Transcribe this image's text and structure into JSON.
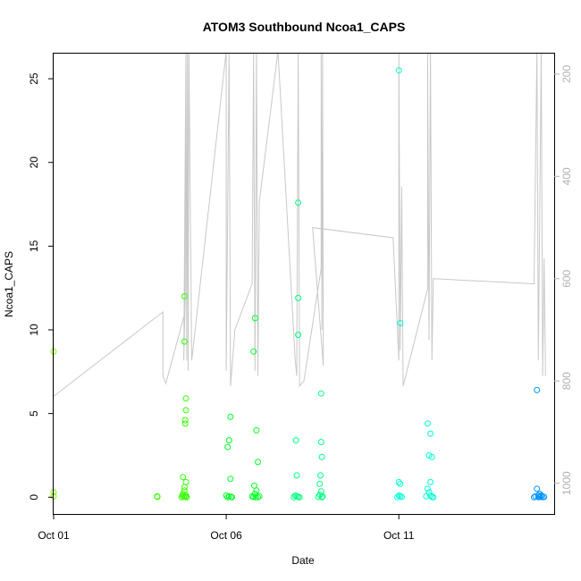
{
  "chart_data": {
    "type": "scatter",
    "title": "ATOM3 Southbound Ncoa1_CAPS",
    "xlabel": "Date",
    "ylabel": "Ncoa1_CAPS",
    "x_is_date": true,
    "xlim": [
      "2023-10-01T00:00",
      "2023-10-15T12:00"
    ],
    "ylim": [
      -1,
      26.5
    ],
    "y2lim": [
      1060,
      160
    ],
    "x_ticks": [
      {
        "value": "2023-10-01T00:00",
        "label": "Oct 01"
      },
      {
        "value": "2023-10-06T00:00",
        "label": "Oct 06"
      },
      {
        "value": "2023-10-11T00:00",
        "label": "Oct 11"
      }
    ],
    "y_ticks": [
      0,
      5,
      10,
      15,
      20,
      25
    ],
    "y2_ticks": [
      200,
      400,
      600,
      800,
      1000
    ],
    "grid": false,
    "legend": "none",
    "colors": {
      "depth_line": "#c8c8c8",
      "right_axis": "#b0b0b0"
    },
    "series": [
      {
        "color": "#7fff00",
        "points": [
          [
            "2023-10-01T00:00",
            8.7
          ],
          [
            "2023-10-01T00:00",
            0.3
          ],
          [
            "2023-10-01T00:00",
            0.05
          ]
        ]
      },
      {
        "color": "#33ff00",
        "points": [
          [
            "2023-10-04T00:00",
            0.05
          ],
          [
            "2023-10-04T00:10",
            0.02
          ],
          [
            "2023-10-04T19:00",
            12.0
          ],
          [
            "2023-10-04T19:00",
            9.3
          ],
          [
            "2023-10-04T20:00",
            5.9
          ],
          [
            "2023-10-04T20:00",
            5.2
          ],
          [
            "2023-10-04T19:30",
            4.6
          ],
          [
            "2023-10-04T19:30",
            4.4
          ],
          [
            "2023-10-04T18:00",
            1.2
          ],
          [
            "2023-10-04T20:00",
            0.9
          ],
          [
            "2023-10-04T19:00",
            0.6
          ],
          [
            "2023-10-04T19:00",
            0.4
          ],
          [
            "2023-10-04T18:00",
            0.2
          ],
          [
            "2023-10-04T20:00",
            0.1
          ],
          [
            "2023-10-04T17:30",
            0.1
          ],
          [
            "2023-10-04T18:30",
            0.05
          ],
          [
            "2023-10-04T19:30",
            0.02
          ],
          [
            "2023-10-04T17:00",
            0.0
          ],
          [
            "2023-10-04T20:30",
            0.0
          ]
        ]
      },
      {
        "color": "#00ff26",
        "points": [
          [
            "2023-10-06T03:00",
            4.8
          ],
          [
            "2023-10-06T02:00",
            3.4
          ],
          [
            "2023-10-06T01:00",
            3.0
          ],
          [
            "2023-10-06T03:00",
            1.1
          ],
          [
            "2023-10-06T00:00",
            0.1
          ],
          [
            "2023-10-06T02:00",
            0.05
          ],
          [
            "2023-10-06T03:30",
            0.02
          ],
          [
            "2023-10-06T01:00",
            0.0
          ],
          [
            "2023-10-06T04:00",
            0.0
          ],
          [
            "2023-10-06T20:00",
            10.7
          ],
          [
            "2023-10-06T19:00",
            8.7
          ],
          [
            "2023-10-06T21:00",
            4.0
          ],
          [
            "2023-10-06T22:00",
            2.1
          ],
          [
            "2023-10-06T19:30",
            0.7
          ],
          [
            "2023-10-06T21:00",
            0.4
          ],
          [
            "2023-10-06T20:00",
            0.2
          ],
          [
            "2023-10-06T18:00",
            0.05
          ],
          [
            "2023-10-06T19:00",
            0.02
          ],
          [
            "2023-10-06T20:30",
            0.0
          ],
          [
            "2023-10-06T22:00",
            0.0
          ],
          [
            "2023-10-06T23:00",
            0.05
          ]
        ]
      },
      {
        "color": "#00ff80",
        "points": [
          [
            "2023-10-08T02:00",
            17.6
          ],
          [
            "2023-10-08T02:00",
            11.9
          ],
          [
            "2023-10-08T02:00",
            9.7
          ],
          [
            "2023-10-08T00:30",
            3.4
          ],
          [
            "2023-10-08T01:00",
            1.3
          ],
          [
            "2023-10-08T00:00",
            0.1
          ],
          [
            "2023-10-08T01:00",
            0.05
          ],
          [
            "2023-10-08T02:00",
            0.02
          ],
          [
            "2023-10-08T03:00",
            0.0
          ],
          [
            "2023-10-07T23:00",
            0.0
          ],
          [
            "2023-10-08T18:00",
            6.2
          ],
          [
            "2023-10-08T18:00",
            3.3
          ],
          [
            "2023-10-08T18:30",
            2.4
          ],
          [
            "2023-10-08T17:30",
            1.3
          ],
          [
            "2023-10-08T17:00",
            0.8
          ],
          [
            "2023-10-08T18:00",
            0.35
          ],
          [
            "2023-10-08T17:00",
            0.15
          ],
          [
            "2023-10-08T19:00",
            0.05
          ],
          [
            "2023-10-08T16:00",
            0.02
          ],
          [
            "2023-10-08T18:30",
            0.0
          ]
        ]
      },
      {
        "color": "#00ffd5",
        "points": [
          [
            "2023-10-11T00:00",
            25.5
          ],
          [
            "2023-10-11T01:00",
            10.4
          ],
          [
            "2023-10-11T00:00",
            0.9
          ],
          [
            "2023-10-11T01:00",
            0.8
          ],
          [
            "2023-10-11T00:00",
            0.1
          ],
          [
            "2023-10-11T01:00",
            0.05
          ],
          [
            "2023-10-11T02:00",
            0.02
          ],
          [
            "2023-10-10T23:00",
            0.0
          ],
          [
            "2023-10-11T20:00",
            4.4
          ],
          [
            "2023-10-11T22:00",
            3.8
          ],
          [
            "2023-10-11T21:00",
            2.5
          ],
          [
            "2023-10-11T23:00",
            2.4
          ],
          [
            "2023-10-11T22:00",
            0.9
          ],
          [
            "2023-10-11T20:00",
            0.5
          ],
          [
            "2023-10-11T21:00",
            0.3
          ],
          [
            "2023-10-11T22:00",
            0.1
          ],
          [
            "2023-10-11T19:00",
            0.05
          ],
          [
            "2023-10-11T23:00",
            0.02
          ],
          [
            "2023-10-12T00:00",
            0.0
          ]
        ]
      },
      {
        "color": "#0096ff",
        "points": [
          [
            "2023-10-15T00:00",
            6.4
          ],
          [
            "2023-10-15T00:00",
            0.5
          ],
          [
            "2023-10-15T02:00",
            0.2
          ],
          [
            "2023-10-15T01:00",
            0.1
          ],
          [
            "2023-10-14T23:00",
            0.05
          ],
          [
            "2023-10-15T03:00",
            0.05
          ],
          [
            "2023-10-15T02:00",
            0.02
          ],
          [
            "2023-10-15T04:00",
            0.0
          ],
          [
            "2023-10-14T22:00",
            0.0
          ],
          [
            "2023-10-15T05:00",
            0.02
          ],
          [
            "2023-10-15T03:00",
            0.1
          ],
          [
            "2023-10-15T01:00",
            0.0
          ]
        ]
      }
    ],
    "depth_line": [
      [
        "2023-10-01T00:00",
        150
      ],
      [
        "2023-10-01T00:00",
        830
      ],
      [
        "2023-10-04T04:00",
        665
      ],
      [
        "2023-10-04T04:00",
        790
      ],
      [
        "2023-10-04T06:00",
        805
      ],
      [
        "2023-10-04T19:00",
        670
      ],
      [
        "2023-10-04T20:00",
        155
      ],
      [
        "2023-10-04T19:30",
        640
      ],
      [
        "2023-10-04T18:30",
        760
      ],
      [
        "2023-10-04T20:00",
        155
      ],
      [
        "2023-10-04T20:30",
        760
      ],
      [
        "2023-10-04T21:00",
        155
      ],
      [
        "2023-10-04T21:30",
        780
      ],
      [
        "2023-10-04T22:00",
        155
      ],
      [
        "2023-10-05T00:00",
        760
      ],
      [
        "2023-10-06T00:00",
        155
      ],
      [
        "2023-10-06T00:00",
        780
      ],
      [
        "2023-10-06T02:00",
        155
      ],
      [
        "2023-10-06T03:00",
        810
      ],
      [
        "2023-10-06T06:00",
        700
      ],
      [
        "2023-10-06T18:00",
        610
      ],
      [
        "2023-10-06T19:00",
        155
      ],
      [
        "2023-10-06T20:00",
        780
      ],
      [
        "2023-10-06T21:00",
        155
      ],
      [
        "2023-10-06T22:00",
        790
      ],
      [
        "2023-10-06T23:00",
        450
      ],
      [
        "2023-10-07T12:00",
        155
      ],
      [
        "2023-10-08T00:00",
        760
      ],
      [
        "2023-10-08T01:00",
        790
      ],
      [
        "2023-10-08T02:00",
        155
      ],
      [
        "2023-10-08T03:00",
        810
      ],
      [
        "2023-10-08T06:00",
        800
      ],
      [
        "2023-10-08T18:00",
        580
      ],
      [
        "2023-10-08T18:00",
        155
      ],
      [
        "2023-10-08T18:30",
        700
      ],
      [
        "2023-10-08T19:00",
        155
      ],
      [
        "2023-10-08T19:30",
        770
      ],
      [
        "2023-10-08T12:00",
        500
      ],
      [
        "2023-10-10T20:00",
        520
      ],
      [
        "2023-10-11T00:00",
        760
      ],
      [
        "2023-10-11T00:00",
        155
      ],
      [
        "2023-10-11T01:00",
        740
      ],
      [
        "2023-10-11T02:00",
        420
      ],
      [
        "2023-10-11T03:00",
        810
      ],
      [
        "2023-10-11T20:00",
        620
      ],
      [
        "2023-10-11T20:00",
        155
      ],
      [
        "2023-10-11T21:00",
        720
      ],
      [
        "2023-10-11T22:00",
        155
      ],
      [
        "2023-10-11T23:00",
        760
      ],
      [
        "2023-10-12T00:00",
        600
      ],
      [
        "2023-10-14T22:00",
        610
      ],
      [
        "2023-10-15T00:00",
        155
      ],
      [
        "2023-10-15T01:00",
        760
      ],
      [
        "2023-10-15T03:00",
        155
      ],
      [
        "2023-10-15T04:00",
        790
      ],
      [
        "2023-10-15T05:00",
        560
      ],
      [
        "2023-10-15T06:00",
        790
      ]
    ]
  }
}
